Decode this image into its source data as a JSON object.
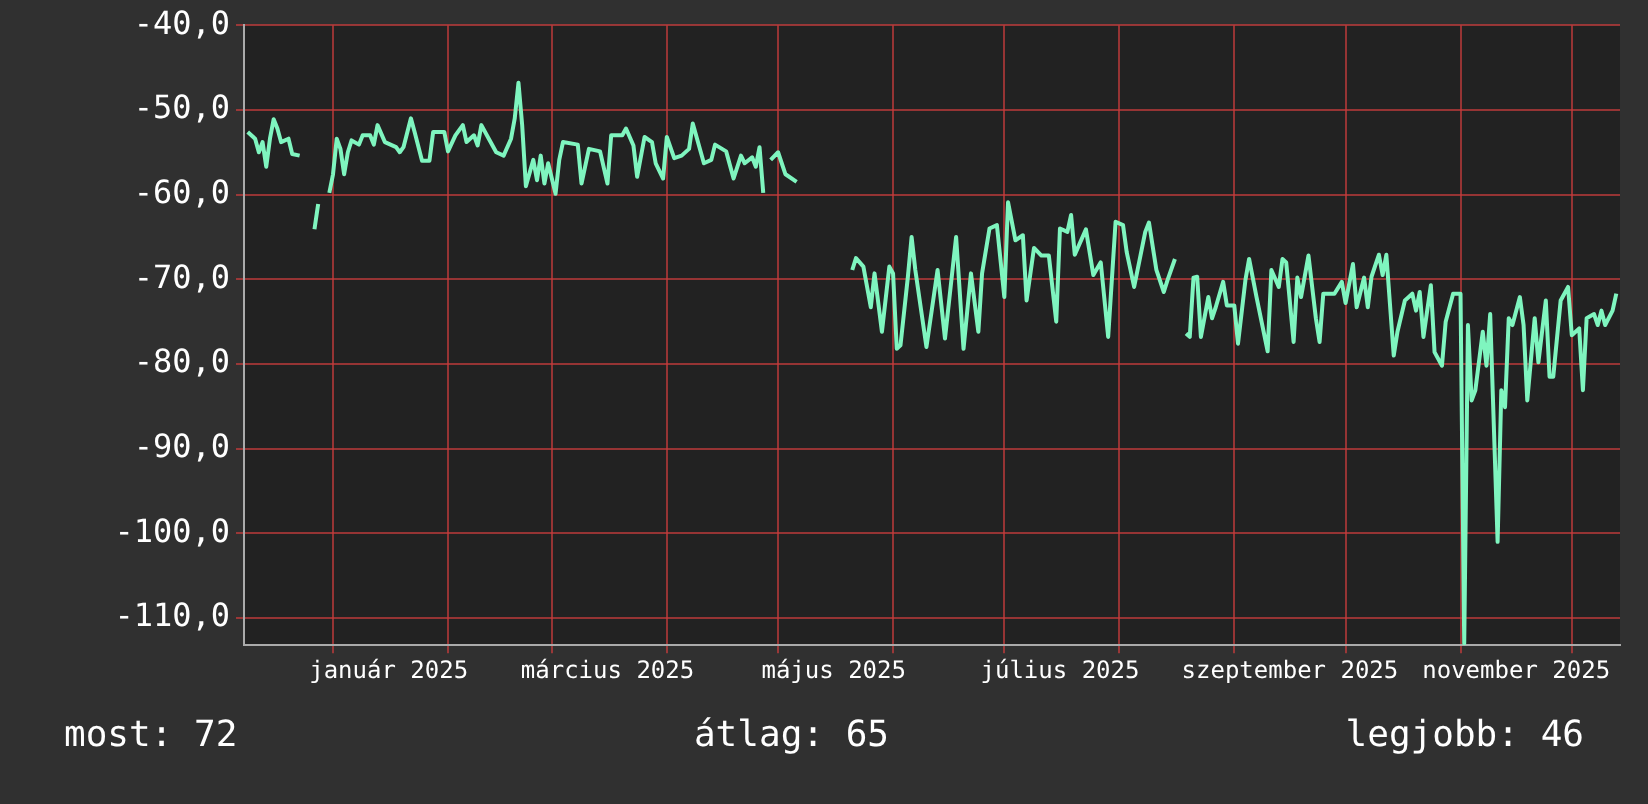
{
  "chart_data": {
    "type": "line",
    "x": [
      "2024-12-09",
      "2024-12-11",
      "2024-12-12",
      "2024-12-13",
      "2024-12-14",
      "2024-12-15",
      "2024-12-16",
      "2024-12-17",
      "2024-12-18",
      "2024-12-20",
      "2024-12-21",
      "2024-12-23",
      "2024-12-25",
      "2024-12-27",
      "2024-12-28",
      "2024-12-29",
      "2024-12-31",
      "2025-01-01",
      "2025-01-02",
      "2025-01-03",
      "2025-01-04",
      "2025-01-05",
      "2025-01-06",
      "2025-01-08",
      "2025-01-09",
      "2025-01-11",
      "2025-01-12",
      "2025-01-13",
      "2025-01-15",
      "2025-01-18",
      "2025-01-19",
      "2025-01-20",
      "2025-01-22",
      "2025-01-23",
      "2025-01-25",
      "2025-01-27",
      "2025-01-28",
      "2025-01-31",
      "2025-02-01",
      "2025-02-03",
      "2025-02-05",
      "2025-02-06",
      "2025-02-08",
      "2025-02-09",
      "2025-02-10",
      "2025-02-12",
      "2025-02-14",
      "2025-02-16",
      "2025-02-18",
      "2025-02-19",
      "2025-02-20",
      "2025-02-21",
      "2025-02-22",
      "2025-02-24",
      "2025-02-25",
      "2025-02-26",
      "2025-02-27",
      "2025-02-28",
      "2025-03-02",
      "2025-03-03",
      "2025-03-04",
      "2025-03-08",
      "2025-03-09",
      "2025-03-11",
      "2025-03-14",
      "2025-03-16",
      "2025-03-17",
      "2025-03-20",
      "2025-03-21",
      "2025-03-23",
      "2025-03-24",
      "2025-03-26",
      "2025-03-28",
      "2025-03-29",
      "2025-03-31",
      "2025-04-01",
      "2025-04-03",
      "2025-04-05",
      "2025-04-07",
      "2025-04-08",
      "2025-04-11",
      "2025-04-13",
      "2025-04-14",
      "2025-04-17",
      "2025-04-19",
      "2025-04-21",
      "2025-04-22",
      "2025-04-24",
      "2025-04-25",
      "2025-04-26",
      "2025-04-27",
      "2025-04-28",
      "2025-04-29",
      "2025-05-01",
      "2025-05-03",
      "2025-05-06",
      "2025-05-13",
      "2025-05-21",
      "2025-05-22",
      "2025-05-24",
      "2025-05-26",
      "2025-05-27",
      "2025-05-29",
      "2025-05-31",
      "2025-06-01",
      "2025-06-02",
      "2025-06-03",
      "2025-06-05",
      "2025-06-06",
      "2025-06-07",
      "2025-06-10",
      "2025-06-13",
      "2025-06-15",
      "2025-06-18",
      "2025-06-20",
      "2025-06-22",
      "2025-06-24",
      "2025-06-25",
      "2025-06-27",
      "2025-06-29",
      "2025-07-01",
      "2025-07-02",
      "2025-07-04",
      "2025-07-06",
      "2025-07-07",
      "2025-07-09",
      "2025-07-11",
      "2025-07-13",
      "2025-07-15",
      "2025-07-16",
      "2025-07-18",
      "2025-07-19",
      "2025-07-20",
      "2025-07-23",
      "2025-07-25",
      "2025-07-27",
      "2025-07-29",
      "2025-07-31",
      "2025-08-02",
      "2025-08-03",
      "2025-08-05",
      "2025-08-08",
      "2025-08-09",
      "2025-08-11",
      "2025-08-13",
      "2025-08-14",
      "2025-08-16",
      "2025-08-17",
      "2025-08-19",
      "2025-08-20",
      "2025-08-21",
      "2025-08-22",
      "2025-08-23",
      "2025-08-25",
      "2025-08-26",
      "2025-08-27",
      "2025-08-29",
      "2025-08-30",
      "2025-09-01",
      "2025-09-02",
      "2025-09-04",
      "2025-09-05",
      "2025-09-07",
      "2025-09-10",
      "2025-09-11",
      "2025-09-13",
      "2025-09-14",
      "2025-09-15",
      "2025-09-17",
      "2025-09-18",
      "2025-09-19",
      "2025-09-21",
      "2025-09-23",
      "2025-09-24",
      "2025-09-25",
      "2025-09-28",
      "2025-09-30",
      "2025-10-01",
      "2025-10-03",
      "2025-10-04",
      "2025-10-06",
      "2025-10-07",
      "2025-10-08",
      "2025-10-10",
      "2025-10-11",
      "2025-10-12",
      "2025-10-14",
      "2025-10-15",
      "2025-10-17",
      "2025-10-19",
      "2025-10-20",
      "2025-10-21",
      "2025-10-22",
      "2025-10-24",
      "2025-10-25",
      "2025-10-27",
      "2025-10-28",
      "2025-10-30",
      "2025-11-01",
      "2025-11-02",
      "2025-11-03",
      "2025-11-04",
      "2025-11-05",
      "2025-11-07",
      "2025-11-08",
      "2025-11-09",
      "2025-11-11",
      "2025-11-12",
      "2025-11-13",
      "2025-11-14",
      "2025-11-15",
      "2025-11-17",
      "2025-11-18",
      "2025-11-19",
      "2025-11-21",
      "2025-11-22",
      "2025-11-24",
      "2025-11-25",
      "2025-11-26",
      "2025-11-28",
      "2025-11-30",
      "2025-12-01",
      "2025-12-03",
      "2025-12-04",
      "2025-12-05",
      "2025-12-07",
      "2025-12-08",
      "2025-12-09",
      "2025-12-10",
      "2025-12-12",
      "2025-12-13"
    ],
    "series": [
      {
        "color": "#7ff5bf",
        "values": [
          -52.6,
          -53.4,
          -55.0,
          -53.8,
          -56.7,
          -53.4,
          -51.1,
          -52.2,
          -53.8,
          -53.4,
          -55.2,
          -55.4,
          null,
          -64.1,
          -61.1,
          null,
          -59.8,
          -57.6,
          -53.4,
          -54.6,
          -57.6,
          -55.0,
          -53.6,
          -54.1,
          -53.0,
          -53.0,
          -54.1,
          -51.8,
          -53.8,
          -54.4,
          -55.0,
          -54.4,
          -51.0,
          -52.6,
          -56.0,
          -56.0,
          -52.6,
          -52.6,
          -54.9,
          -53.0,
          -51.8,
          -53.8,
          -53.0,
          -54.2,
          -51.8,
          -53.4,
          -55.0,
          -55.4,
          -53.4,
          -51.0,
          -46.8,
          -51.8,
          -59.0,
          -55.9,
          -58.3,
          -55.4,
          -58.7,
          -56.3,
          -59.9,
          -55.9,
          -53.8,
          -54.1,
          -58.7,
          -54.6,
          -54.9,
          -58.7,
          -53.0,
          -53.0,
          -52.2,
          -54.2,
          -57.9,
          -53.2,
          -53.8,
          -56.3,
          -58.1,
          -53.2,
          -55.7,
          -55.4,
          -54.6,
          -51.6,
          -56.3,
          -55.9,
          -54.1,
          -54.9,
          -58.1,
          -55.4,
          -56.3,
          -55.6,
          -56.7,
          -54.4,
          -59.8,
          null,
          -55.9,
          -55.0,
          -57.6,
          -58.5,
          null,
          -68.9,
          -67.5,
          -68.5,
          -73.3,
          -69.3,
          -76.2,
          -68.5,
          -69.3,
          -78.2,
          -77.8,
          -69.7,
          -65.0,
          -68.9,
          -78.0,
          -68.9,
          -77.0,
          -65.0,
          -78.2,
          -69.3,
          -76.2,
          -69.3,
          -64.0,
          -63.6,
          -72.1,
          -60.9,
          -65.4,
          -64.8,
          -72.5,
          -66.3,
          -67.2,
          -67.2,
          -75.0,
          -64.0,
          -64.4,
          -62.4,
          -67.1,
          -64.1,
          -69.5,
          -68.0,
          -76.8,
          -63.2,
          -63.6,
          -66.8,
          -70.9,
          -64.4,
          -63.3,
          -68.9,
          -71.5,
          -70.1,
          -67.6,
          null,
          -76.4,
          -76.8,
          -69.8,
          -69.7,
          -76.8,
          -72.1,
          -74.6,
          -73.3,
          -70.3,
          -73.1,
          -73.1,
          -77.6,
          -70.1,
          -67.6,
          -72.1,
          -78.5,
          -68.9,
          -70.9,
          -67.6,
          -68.0,
          -77.4,
          -69.8,
          -72.1,
          -67.2,
          -74.6,
          -77.4,
          -71.7,
          -71.7,
          -70.3,
          -72.8,
          -68.2,
          -73.3,
          -69.8,
          -73.3,
          -69.7,
          -67.1,
          -69.5,
          -67.1,
          -79.0,
          -76.2,
          -72.5,
          -71.7,
          -73.7,
          -71.5,
          -76.8,
          -70.7,
          -78.6,
          -80.2,
          -75.0,
          -71.7,
          -71.7,
          -113,
          -75.4,
          -84.3,
          -83.1,
          -76.2,
          -80.2,
          -74.1,
          -101.0,
          -83.1,
          -85.1,
          -74.6,
          -75.4,
          -72.1,
          -75.4,
          -84.3,
          -74.6,
          -79.8,
          -72.5,
          -81.5,
          -81.5,
          -72.5,
          -70.9,
          -76.6,
          -75.8,
          -83.1,
          -74.6,
          -74.1,
          -75.4,
          -73.7,
          -75.4,
          -73.7,
          -71.7
        ]
      }
    ],
    "xlim": [
      "2024-12-08",
      "2025-12-14"
    ],
    "xticks": [
      {
        "value": "2025-01-01",
        "label": null
      },
      {
        "value": "2025-01-16",
        "label": "január 2025"
      },
      {
        "value": "2025-02-01",
        "label": null
      },
      {
        "value": "2025-03-01",
        "label": null
      },
      {
        "value": "2025-03-16",
        "label": "március 2025"
      },
      {
        "value": "2025-04-01",
        "label": null
      },
      {
        "value": "2025-05-01",
        "label": null
      },
      {
        "value": "2025-05-16",
        "label": "május 2025"
      },
      {
        "value": "2025-06-01",
        "label": null
      },
      {
        "value": "2025-07-01",
        "label": null
      },
      {
        "value": "2025-07-16",
        "label": "július 2025"
      },
      {
        "value": "2025-08-01",
        "label": null
      },
      {
        "value": "2025-09-01",
        "label": null
      },
      {
        "value": "2025-09-16",
        "label": "szeptember 2025"
      },
      {
        "value": "2025-10-01",
        "label": null
      },
      {
        "value": "2025-11-01",
        "label": null
      },
      {
        "value": "2025-11-16",
        "label": "november 2025"
      },
      {
        "value": "2025-12-01",
        "label": null
      }
    ],
    "ylim": [
      -113.2,
      -40
    ],
    "yticks": [
      {
        "value": -110,
        "label": "-110,0"
      },
      {
        "value": -100,
        "label": "-100,0"
      },
      {
        "value": -90,
        "label": "-90,0"
      },
      {
        "value": -80,
        "label": "-80,0"
      },
      {
        "value": -70,
        "label": "-70,0"
      },
      {
        "value": -60,
        "label": "-60,0"
      },
      {
        "value": -50,
        "label": "-50,0"
      },
      {
        "value": -40,
        "label": "-40,0"
      }
    ],
    "grid": true,
    "annotations": [
      "most: 72",
      "átlag: 65",
      "legjobb: 46"
    ]
  }
}
